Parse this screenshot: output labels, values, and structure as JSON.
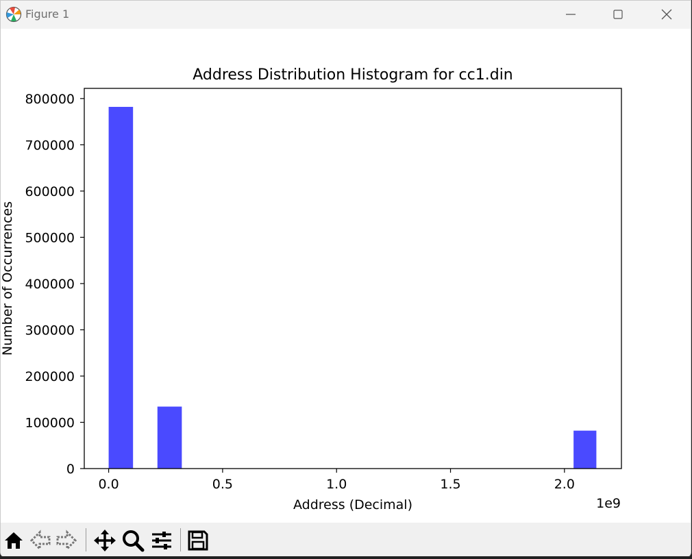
{
  "window": {
    "title": "Figure 1",
    "controls": {
      "minimize": "minimize-icon",
      "maximize": "maximize-icon",
      "close": "close-icon"
    }
  },
  "toolbar": {
    "tools": [
      "home-icon",
      "back-arrow-icon",
      "forward-arrow-icon",
      "pan-icon",
      "zoom-icon",
      "configure-subplots-icon",
      "save-icon"
    ]
  },
  "chart_data": {
    "type": "bar",
    "title": "Address Distribution Histogram for cc1.din",
    "xlabel": "Address (Decimal)",
    "ylabel": "Number of Occurrences",
    "x_offset_label": "1e9",
    "xlim": [
      -0.107,
      2.25
    ],
    "ylim": [
      0,
      822000
    ],
    "xticks": [
      0.0,
      0.5,
      1.0,
      1.5,
      2.0
    ],
    "xtick_labels": [
      "0.0",
      "0.5",
      "1.0",
      "1.5",
      "2.0"
    ],
    "yticks": [
      0,
      100000,
      200000,
      300000,
      400000,
      500000,
      600000,
      700000,
      800000
    ],
    "ytick_labels": [
      "0",
      "100000",
      "200000",
      "300000",
      "400000",
      "500000",
      "600000",
      "700000",
      "800000"
    ],
    "grid": false,
    "bar_color": "#4a4aff",
    "bins": [
      {
        "x_start": 0.0,
        "x_end": 0.107,
        "value": 782000
      },
      {
        "x_start": 0.214,
        "x_end": 0.321,
        "value": 134000
      },
      {
        "x_start": 2.04,
        "x_end": 2.14,
        "value": 82000
      }
    ]
  }
}
